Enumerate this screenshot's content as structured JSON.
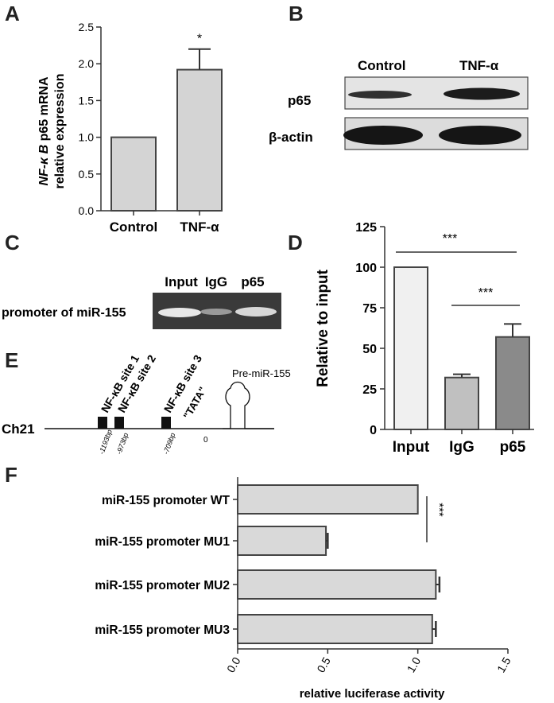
{
  "panels": {
    "a": {
      "letter": "A"
    },
    "b": {
      "letter": "B",
      "lanes": [
        "Control",
        "TNF-α"
      ],
      "rows": [
        "p65",
        "β-actin"
      ]
    },
    "c": {
      "letter": "C",
      "lanes": [
        "Input",
        "IgG",
        "p65"
      ],
      "row_label": "promoter of miR-155"
    },
    "e": {
      "letter": "E",
      "chromosome": "Ch21",
      "sites": [
        "NF-κB site 1",
        "NF-κB site 2",
        "NF-κB site 3"
      ],
      "positions": [
        "-1193bp",
        "-973bp",
        "-709bp"
      ],
      "tata": "\"TATA\"",
      "zero": "0",
      "precursor": "Pre-miR-155"
    },
    "d": {
      "letter": "D"
    },
    "f": {
      "letter": "F"
    }
  },
  "chart_data": [
    {
      "panel": "A",
      "type": "bar",
      "categories": [
        "Control",
        "TNF-α"
      ],
      "values": [
        1.0,
        1.92
      ],
      "errors": [
        0,
        0.28
      ],
      "significance": [
        "",
        "*"
      ],
      "ylabel_italic": "NF-κ B",
      "ylabel_rest": " p65 mRNA",
      "ylabel_line2": "relative expression",
      "ylim": [
        0,
        2.5
      ],
      "yticks": [
        "0.0",
        "0.5",
        "1.0",
        "1.5",
        "2.0",
        "2.5"
      ],
      "ytick_values": [
        0,
        0.5,
        1.0,
        1.5,
        2.0,
        2.5
      ],
      "colors": [
        "#d4d4d4",
        "#d4d4d4"
      ]
    },
    {
      "panel": "D",
      "type": "bar",
      "categories": [
        "Input",
        "IgG",
        "p65"
      ],
      "values": [
        100,
        32,
        57
      ],
      "errors": [
        0,
        2,
        8
      ],
      "significance": [
        "***",
        "***"
      ],
      "ylabel": "Relative to input",
      "ylim": [
        0,
        125
      ],
      "yticks": [
        "0",
        "25",
        "50",
        "75",
        "100",
        "125"
      ],
      "ytick_values": [
        0,
        25,
        50,
        75,
        100,
        125
      ],
      "colors": [
        "#f0f0f0",
        "#c0c0c0",
        "#8a8a8a"
      ]
    },
    {
      "panel": "F",
      "type": "bar",
      "orientation": "horizontal",
      "categories": [
        "miR-155 promoter WT",
        "miR-155 promoter MU1",
        "miR-155 promoter MU2",
        "miR-155 promoter MU3"
      ],
      "values": [
        1.0,
        0.49,
        1.1,
        1.08
      ],
      "errors": [
        0,
        0.01,
        0.02,
        0.02
      ],
      "significance": "***",
      "xlabel": "relative luciferase activity",
      "xlim": [
        0,
        1.5
      ],
      "xticks": [
        "0.0",
        "0.5",
        "1.0",
        "1.5"
      ],
      "xtick_values": [
        0,
        0.5,
        1.0,
        1.5
      ],
      "colors": [
        "#d9d9d9"
      ]
    }
  ]
}
